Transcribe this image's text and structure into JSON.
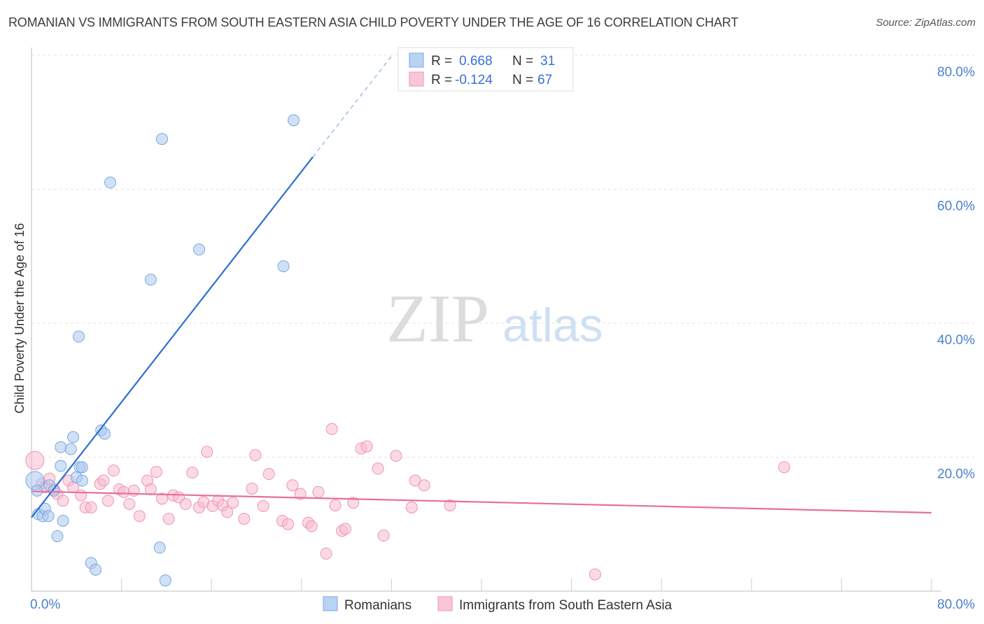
{
  "title": "ROMANIAN VS IMMIGRANTS FROM SOUTH EASTERN ASIA CHILD POVERTY UNDER THE AGE OF 16 CORRELATION CHART",
  "source": "Source: ZipAtlas.com",
  "watermark": {
    "zip": "ZIP",
    "atlas": "atlas"
  },
  "legend_box": {
    "rows": [
      {
        "r_label": "R = ",
        "r_value": "0.668",
        "n_label": "N = ",
        "n_value": "31"
      },
      {
        "r_label": "R = ",
        "r_value": "-0.124",
        "n_label": "N = ",
        "n_value": "67"
      }
    ]
  },
  "chart_data": {
    "type": "scatter",
    "title": "ROMANIAN VS IMMIGRANTS FROM SOUTH EASTERN ASIA CHILD POVERTY UNDER THE AGE OF 16 CORRELATION CHART",
    "xlabel": "",
    "ylabel": "Child Poverty Under the Age of 16",
    "xlim": [
      0,
      80
    ],
    "ylim": [
      0,
      80
    ],
    "x_tick_labels": [
      "0.0%",
      "80.0%"
    ],
    "y_ticks": [
      20,
      40,
      60,
      80
    ],
    "y_tick_labels": [
      "20.0%",
      "40.0%",
      "60.0%",
      "80.0%"
    ],
    "grid": true,
    "legend_placement": "bottom-center",
    "series": [
      {
        "name": "Romanians",
        "color": "#a9c8ef",
        "edge": "#7aa7e0",
        "line_color": "#2c6fd1",
        "r": 0.668,
        "n": 31,
        "trend": {
          "x0": 0,
          "y0": 11.0,
          "x1": 25.0,
          "y1": 64.8,
          "dash_to_x": 32.0
        },
        "points": [
          [
            0.3,
            16.5
          ],
          [
            0.5,
            15.0
          ],
          [
            0.6,
            11.5
          ],
          [
            1.0,
            11.2
          ],
          [
            1.2,
            12.3
          ],
          [
            1.5,
            11.2
          ],
          [
            1.6,
            15.8
          ],
          [
            2.0,
            15.0
          ],
          [
            2.3,
            8.2
          ],
          [
            2.6,
            18.7
          ],
          [
            2.8,
            10.5
          ],
          [
            2.6,
            21.5
          ],
          [
            3.5,
            21.2
          ],
          [
            3.7,
            23.0
          ],
          [
            4.0,
            17.0
          ],
          [
            4.3,
            18.5
          ],
          [
            4.5,
            16.5
          ],
          [
            4.5,
            18.5
          ],
          [
            4.2,
            38.0
          ],
          [
            5.3,
            4.2
          ],
          [
            5.7,
            3.2
          ],
          [
            6.2,
            24.0
          ],
          [
            6.5,
            23.5
          ],
          [
            7.0,
            61.0
          ],
          [
            10.6,
            46.5
          ],
          [
            11.6,
            67.5
          ],
          [
            14.9,
            51.0
          ],
          [
            11.4,
            6.5
          ],
          [
            11.9,
            1.6
          ],
          [
            22.4,
            48.5
          ],
          [
            23.3,
            70.3
          ]
        ]
      },
      {
        "name": "Immigrants from South Eastern Asia",
        "color": "#f8bcd1",
        "edge": "#ef93b5",
        "line_color": "#e5709a",
        "r": -0.124,
        "n": 67,
        "trend": {
          "x0": 0,
          "y0": 14.9,
          "x1": 80,
          "y1": 11.7
        },
        "points": [
          [
            0.3,
            19.5
          ],
          [
            0.9,
            16.0
          ],
          [
            1.2,
            15.5
          ],
          [
            1.6,
            16.8
          ],
          [
            2.0,
            15.2
          ],
          [
            2.3,
            14.5
          ],
          [
            2.8,
            13.5
          ],
          [
            3.3,
            16.5
          ],
          [
            3.7,
            15.5
          ],
          [
            4.4,
            14.3
          ],
          [
            4.8,
            12.5
          ],
          [
            5.3,
            12.5
          ],
          [
            6.1,
            16.0
          ],
          [
            6.4,
            16.5
          ],
          [
            6.8,
            13.5
          ],
          [
            7.3,
            18.0
          ],
          [
            7.8,
            15.2
          ],
          [
            8.2,
            14.8
          ],
          [
            8.7,
            13.0
          ],
          [
            9.1,
            15.0
          ],
          [
            9.6,
            11.2
          ],
          [
            10.3,
            16.5
          ],
          [
            10.6,
            15.2
          ],
          [
            11.1,
            17.8
          ],
          [
            11.6,
            13.8
          ],
          [
            12.2,
            10.8
          ],
          [
            12.6,
            14.3
          ],
          [
            13.1,
            14.0
          ],
          [
            13.7,
            13.0
          ],
          [
            14.3,
            17.7
          ],
          [
            14.9,
            12.5
          ],
          [
            15.3,
            13.3
          ],
          [
            15.6,
            20.8
          ],
          [
            16.1,
            12.7
          ],
          [
            16.6,
            13.5
          ],
          [
            17.0,
            12.8
          ],
          [
            17.4,
            11.8
          ],
          [
            17.9,
            13.2
          ],
          [
            18.9,
            10.8
          ],
          [
            19.6,
            15.3
          ],
          [
            19.9,
            20.3
          ],
          [
            20.6,
            12.7
          ],
          [
            21.1,
            17.5
          ],
          [
            22.3,
            10.5
          ],
          [
            22.8,
            10.0
          ],
          [
            23.2,
            15.8
          ],
          [
            23.9,
            14.5
          ],
          [
            24.6,
            10.2
          ],
          [
            24.9,
            9.7
          ],
          [
            25.5,
            14.8
          ],
          [
            26.2,
            5.6
          ],
          [
            26.7,
            24.2
          ],
          [
            27.0,
            12.8
          ],
          [
            27.6,
            9.0
          ],
          [
            27.9,
            9.3
          ],
          [
            28.6,
            13.2
          ],
          [
            29.3,
            21.3
          ],
          [
            29.8,
            21.6
          ],
          [
            30.8,
            18.3
          ],
          [
            31.3,
            8.3
          ],
          [
            32.4,
            20.2
          ],
          [
            33.8,
            12.5
          ],
          [
            34.1,
            16.5
          ],
          [
            34.9,
            15.8
          ],
          [
            37.2,
            12.8
          ],
          [
            50.1,
            2.5
          ],
          [
            66.9,
            18.5
          ]
        ]
      }
    ]
  }
}
